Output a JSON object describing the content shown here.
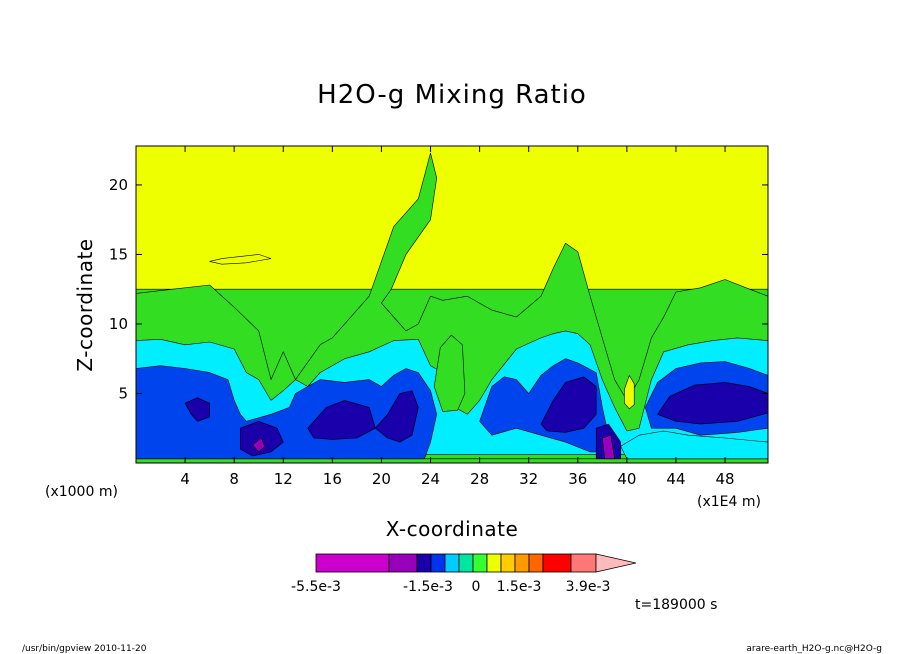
{
  "chart_data": {
    "type": "heatmap",
    "title": "H2O-g Mixing Ratio",
    "xlabel": "X-coordinate",
    "ylabel": "Z-coordinate",
    "x_unit_left": "(x1000 m)",
    "x_unit_right": "(x1E4 m)",
    "xlim": [
      0,
      51.5
    ],
    "ylim": [
      0,
      22.8
    ],
    "x_ticks": [
      4,
      8,
      12,
      16,
      20,
      24,
      28,
      32,
      36,
      40,
      44,
      48
    ],
    "y_ticks": [
      5,
      10,
      15,
      20
    ],
    "levels_colors": [
      "#cc00cc",
      "#9900bb",
      "#1a00aa",
      "#0033ee",
      "#00ccff",
      "#00e5a0",
      "#33ff33",
      "#eeff00",
      "#ffcc00",
      "#ff9900",
      "#ff6600",
      "#ff0000",
      "#ff7777",
      "#ffbbbb"
    ],
    "colorbar_labels": [
      "-5.5e-3",
      "-1.5e-3",
      "0",
      "1.5e-3",
      "3.9e-3"
    ],
    "time_label": "t=189000 s",
    "regions": [
      {
        "name": "yellow-top",
        "color": "#eeff00",
        "points": [
          [
            0,
            22.8
          ],
          [
            51.5,
            22.8
          ],
          [
            51.5,
            12.5
          ],
          [
            0,
            12.5
          ]
        ]
      },
      {
        "name": "green-band",
        "color": "#33dd22",
        "points": [
          [
            0,
            12.2
          ],
          [
            3,
            12.5
          ],
          [
            6,
            12.8
          ],
          [
            8,
            11.2
          ],
          [
            10,
            9.5
          ],
          [
            11,
            6
          ],
          [
            12,
            8
          ],
          [
            13,
            6
          ],
          [
            15,
            8.5
          ],
          [
            16,
            9
          ],
          [
            18,
            11
          ],
          [
            19,
            12
          ],
          [
            21,
            17
          ],
          [
            23,
            19
          ],
          [
            24,
            22.3
          ],
          [
            24.5,
            20.5
          ],
          [
            24,
            17.5
          ],
          [
            22,
            15
          ],
          [
            20.8,
            12.5
          ],
          [
            20,
            11.5
          ],
          [
            21,
            10.5
          ],
          [
            22,
            9.5
          ],
          [
            23,
            10
          ],
          [
            24,
            12
          ],
          [
            25,
            11.7
          ],
          [
            27,
            12
          ],
          [
            29,
            11
          ],
          [
            31,
            10.5
          ],
          [
            33,
            12
          ],
          [
            34,
            14
          ],
          [
            35,
            15.8
          ],
          [
            36,
            15.2
          ],
          [
            37,
            12
          ],
          [
            38,
            9
          ],
          [
            39,
            6
          ],
          [
            40,
            4.5
          ],
          [
            41,
            6
          ],
          [
            42,
            9
          ],
          [
            43,
            10.5
          ],
          [
            44,
            12.3
          ],
          [
            46,
            12.6
          ],
          [
            48,
            13.2
          ],
          [
            50,
            12.5
          ],
          [
            51.5,
            12
          ],
          [
            51.5,
            0.3
          ],
          [
            0,
            0.3
          ]
        ]
      },
      {
        "name": "cyan-band",
        "color": "#00eeff",
        "points": [
          [
            0,
            8.8
          ],
          [
            2,
            8.9
          ],
          [
            4,
            8.5
          ],
          [
            6,
            8.7
          ],
          [
            8,
            8.2
          ],
          [
            9,
            6.5
          ],
          [
            10,
            6
          ],
          [
            11,
            4.5
          ],
          [
            12,
            5.2
          ],
          [
            13,
            6
          ],
          [
            14,
            5.5
          ],
          [
            15,
            6.5
          ],
          [
            17,
            7.5
          ],
          [
            19,
            8
          ],
          [
            21,
            8.8
          ],
          [
            23,
            8.9
          ],
          [
            24,
            7
          ],
          [
            25,
            6.5
          ],
          [
            26,
            4
          ],
          [
            27,
            3.5
          ],
          [
            28,
            4.5
          ],
          [
            29,
            6
          ],
          [
            31,
            8.2
          ],
          [
            32,
            8.6
          ],
          [
            33,
            9
          ],
          [
            34,
            9.3
          ],
          [
            35,
            9.5
          ],
          [
            36,
            9.3
          ],
          [
            37,
            8.5
          ],
          [
            38,
            6
          ],
          [
            39,
            4
          ],
          [
            40,
            2.3
          ],
          [
            41,
            2.5
          ],
          [
            42,
            6
          ],
          [
            43,
            8
          ],
          [
            45,
            8.5
          ],
          [
            47,
            8.8
          ],
          [
            49,
            9
          ],
          [
            51.5,
            8.8
          ],
          [
            51.5,
            0.6
          ],
          [
            0,
            0.6
          ]
        ]
      },
      {
        "name": "blue-band",
        "color": "#0044ee",
        "points": [
          [
            0,
            6.8
          ],
          [
            2,
            7
          ],
          [
            4,
            6.8
          ],
          [
            6,
            6.5
          ],
          [
            7.5,
            6
          ],
          [
            8,
            4.5
          ],
          [
            8.5,
            3.5
          ],
          [
            9,
            3
          ],
          [
            11,
            3.5
          ],
          [
            12.5,
            4
          ],
          [
            13,
            5
          ],
          [
            14,
            5.5
          ],
          [
            15,
            6
          ],
          [
            17,
            5.8
          ],
          [
            19,
            6
          ],
          [
            20,
            5.5
          ],
          [
            21,
            6.3
          ],
          [
            22,
            6.8
          ],
          [
            23,
            6.5
          ],
          [
            24,
            5.2
          ],
          [
            24.5,
            3.5
          ],
          [
            24,
            1.5
          ],
          [
            23.5,
            0.3
          ],
          [
            0,
            0.3
          ]
        ]
      },
      {
        "name": "blue-band-mid",
        "color": "#0044ee",
        "points": [
          [
            28,
            3
          ],
          [
            29,
            5.5
          ],
          [
            30,
            6.2
          ],
          [
            31,
            6
          ],
          [
            32,
            5
          ],
          [
            33,
            6.3
          ],
          [
            34,
            7
          ],
          [
            35,
            7.5
          ],
          [
            36,
            7.2
          ],
          [
            37.5,
            6.5
          ],
          [
            38,
            4
          ],
          [
            38.5,
            2
          ],
          [
            38,
            0.8
          ],
          [
            37,
            0.8
          ],
          [
            35,
            1.5
          ],
          [
            33,
            2
          ],
          [
            31,
            2.5
          ],
          [
            29,
            2
          ]
        ]
      },
      {
        "name": "blue-band-right",
        "color": "#0044ee",
        "points": [
          [
            41.5,
            4
          ],
          [
            42.5,
            5.8
          ],
          [
            44,
            6.8
          ],
          [
            46,
            7.2
          ],
          [
            48,
            7.3
          ],
          [
            50,
            6.8
          ],
          [
            51.5,
            6.3
          ],
          [
            51.5,
            2.5
          ],
          [
            49,
            2.2
          ],
          [
            46,
            2
          ],
          [
            44,
            2.5
          ],
          [
            42,
            2.5
          ]
        ]
      },
      {
        "name": "navy-blob-1",
        "color": "#1a00aa",
        "points": [
          [
            4,
            4.3
          ],
          [
            5,
            4.7
          ],
          [
            6,
            4.3
          ],
          [
            6,
            3.3
          ],
          [
            5,
            3
          ],
          [
            4.5,
            3.5
          ]
        ]
      },
      {
        "name": "navy-blob-2",
        "color": "#1a00aa",
        "points": [
          [
            8.5,
            2.5
          ],
          [
            10,
            3
          ],
          [
            11.5,
            2.5
          ],
          [
            12,
            1.5
          ],
          [
            11,
            0.8
          ],
          [
            9.5,
            0.5
          ],
          [
            8.5,
            1
          ]
        ]
      },
      {
        "name": "navy-blob-3",
        "color": "#1a00aa",
        "points": [
          [
            14,
            2.5
          ],
          [
            15.5,
            4
          ],
          [
            17,
            4.5
          ],
          [
            19,
            4
          ],
          [
            19.5,
            2.5
          ],
          [
            18,
            1.8
          ],
          [
            16,
            1.7
          ],
          [
            14.5,
            1.8
          ]
        ]
      },
      {
        "name": "navy-blob-4",
        "color": "#1a00aa",
        "points": [
          [
            19.5,
            2.5
          ],
          [
            20.5,
            3.5
          ],
          [
            21.5,
            5
          ],
          [
            22.5,
            5.2
          ],
          [
            23,
            4
          ],
          [
            22.5,
            2
          ],
          [
            21.5,
            1.5
          ],
          [
            20.5,
            1.8
          ]
        ]
      },
      {
        "name": "navy-blob-5",
        "color": "#1a00aa",
        "points": [
          [
            33,
            2.8
          ],
          [
            34,
            4.5
          ],
          [
            35,
            5.8
          ],
          [
            36.5,
            6.2
          ],
          [
            37.5,
            5.5
          ],
          [
            37.5,
            3.5
          ],
          [
            36.5,
            2.5
          ],
          [
            35,
            2.2
          ],
          [
            33.5,
            2.3
          ]
        ]
      },
      {
        "name": "navy-blob-6",
        "color": "#1a00aa",
        "points": [
          [
            42.5,
            3.5
          ],
          [
            43.5,
            4.8
          ],
          [
            45.5,
            5.6
          ],
          [
            48,
            5.8
          ],
          [
            50,
            5.5
          ],
          [
            51.5,
            5
          ],
          [
            51.5,
            3.6
          ],
          [
            49,
            3
          ],
          [
            46,
            2.8
          ],
          [
            44,
            3
          ]
        ]
      },
      {
        "name": "navy-blob-7",
        "color": "#1a00aa",
        "points": [
          [
            37.5,
            2.5
          ],
          [
            38.5,
            2.8
          ],
          [
            39.5,
            1.5
          ],
          [
            39.5,
            0.3
          ],
          [
            37.5,
            0.3
          ]
        ]
      },
      {
        "name": "purple-blob-1",
        "color": "#9900bb",
        "points": [
          [
            9.5,
            1.3
          ],
          [
            10.2,
            1.8
          ],
          [
            10.5,
            1.2
          ],
          [
            10,
            0.8
          ]
        ]
      },
      {
        "name": "purple-blob-2",
        "color": "#9900bb",
        "points": [
          [
            38,
            1.8
          ],
          [
            38.7,
            2
          ],
          [
            39,
            0.3
          ],
          [
            38.2,
            0.3
          ]
        ]
      },
      {
        "name": "cyan-bottom-right",
        "color": "#00eeff",
        "points": [
          [
            39.5,
            1.2
          ],
          [
            41,
            2
          ],
          [
            43,
            2.3
          ],
          [
            45,
            2
          ],
          [
            48,
            1.8
          ],
          [
            51.5,
            1.5
          ],
          [
            51.5,
            0.3
          ],
          [
            40,
            0.3
          ]
        ]
      },
      {
        "name": "yellow-blob-top",
        "color": "#eeff00",
        "points": [
          [
            6,
            14.5
          ],
          [
            7,
            14.7
          ],
          [
            9,
            14.9
          ],
          [
            10,
            15
          ],
          [
            11,
            14.7
          ],
          [
            9,
            14.4
          ],
          [
            7,
            14.3
          ]
        ]
      },
      {
        "name": "yellow-pocket-1",
        "color": "#eeff00",
        "points": [
          [
            24.9,
            5.2
          ],
          [
            25.2,
            7.5
          ],
          [
            25.7,
            8.2
          ],
          [
            26.2,
            7.5
          ],
          [
            26.3,
            5
          ],
          [
            25.7,
            4.7
          ],
          [
            25.1,
            4.8
          ]
        ]
      },
      {
        "name": "yellow-pocket-2",
        "color": "#eeff00",
        "points": [
          [
            39.8,
            5.3
          ],
          [
            40.2,
            6.3
          ],
          [
            40.6,
            5.7
          ],
          [
            40.6,
            4.2
          ],
          [
            40.2,
            3.9
          ],
          [
            39.8,
            4.3
          ]
        ]
      },
      {
        "name": "green-under-yellow-1",
        "color": "#33dd22",
        "points": [
          [
            24.3,
            5.5
          ],
          [
            24.8,
            8.3
          ],
          [
            25.7,
            9.2
          ],
          [
            26.6,
            8.5
          ],
          [
            26.8,
            5
          ],
          [
            26.2,
            3.8
          ],
          [
            25,
            3.7
          ]
        ]
      }
    ]
  },
  "footer": {
    "left": "/usr/bin/gpview  2010-11-20",
    "right": "arare-earth_H2O-g.nc@H2O-g"
  }
}
